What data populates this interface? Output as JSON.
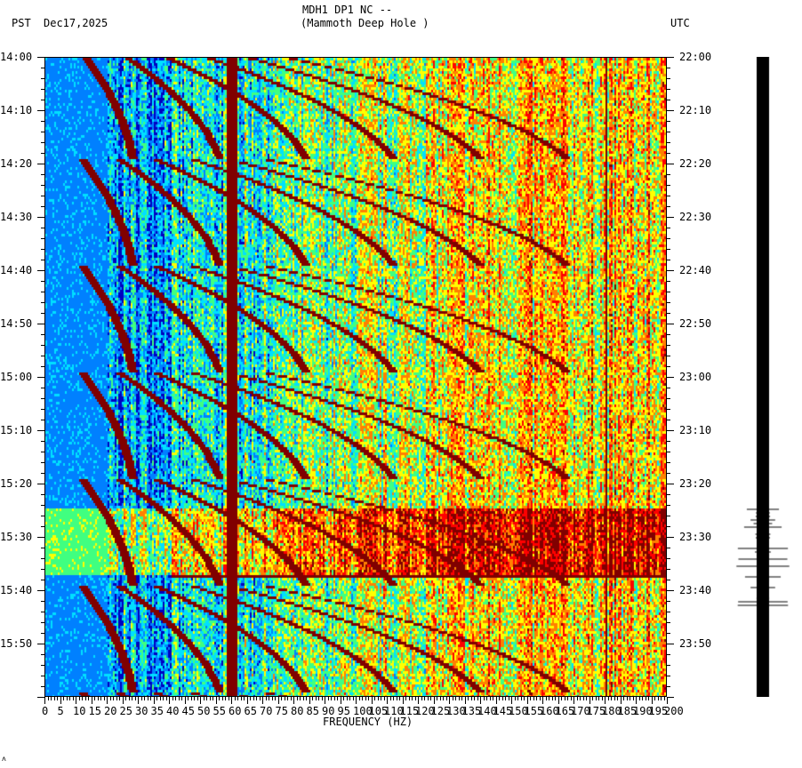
{
  "header": {
    "station": "MDH1 DP1 NC --",
    "site": "(Mammoth Deep Hole )",
    "left_tz": "PST",
    "date": "Dec17,2025",
    "right_tz": "UTC"
  },
  "footer_mark": "ʌ",
  "chart_data": {
    "type": "heatmap",
    "title": "MDH1 DP1 NC -- (Mammoth Deep Hole )",
    "xlabel": "FREQUENCY (HZ)",
    "xlim": [
      0,
      200
    ],
    "x_ticks": [
      "0",
      "5",
      "10",
      "15",
      "20",
      "25",
      "30",
      "35",
      "40",
      "45",
      "50",
      "55",
      "60",
      "65",
      "70",
      "75",
      "80",
      "85",
      "90",
      "95",
      "100",
      "105",
      "110",
      "115",
      "120",
      "125",
      "130",
      "135",
      "140",
      "145",
      "150",
      "155",
      "160",
      "165",
      "170",
      "175",
      "180",
      "185",
      "190",
      "195",
      "200"
    ],
    "y_left_ticks": [
      "14:00",
      "14:10",
      "14:20",
      "14:30",
      "14:40",
      "14:50",
      "15:00",
      "15:10",
      "15:20",
      "15:30",
      "15:40",
      "15:50"
    ],
    "y_right_ticks": [
      "22:00",
      "22:10",
      "22:20",
      "22:30",
      "22:40",
      "22:50",
      "23:00",
      "23:10",
      "23:20",
      "23:30",
      "23:40",
      "23:50"
    ],
    "time_range_pst": [
      "14:00",
      "16:00"
    ],
    "colormap": [
      "#0000c0",
      "#0080ff",
      "#00e0ff",
      "#40ff80",
      "#ffff00",
      "#ff8000",
      "#ff0000",
      "#800000"
    ],
    "persistent_lines_hz": [
      60,
      180
    ],
    "chirp_period_min": 20
  }
}
